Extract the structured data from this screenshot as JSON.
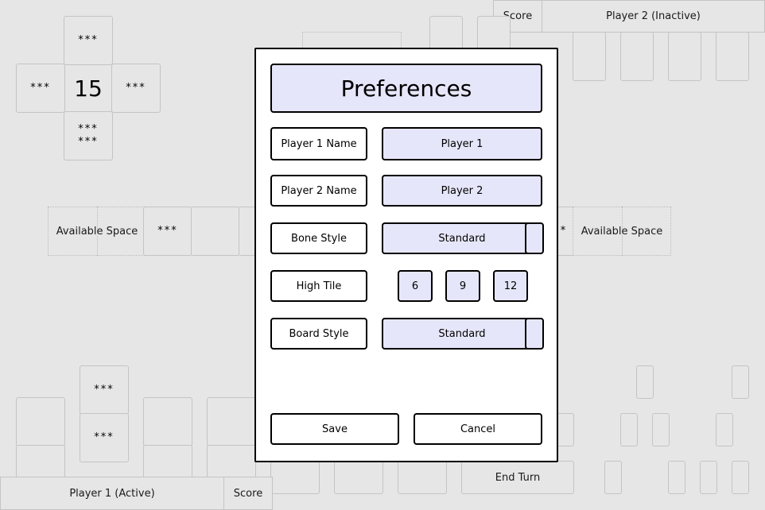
{
  "window": {
    "width": 962,
    "height": 642
  },
  "board": {
    "score_display": "15",
    "pips_single": "***",
    "pips_double": "***\n***",
    "available_space_label": "Available Space",
    "partial_pips": "*"
  },
  "top_bar": {
    "score_label": "Score",
    "player2_label": "Player 2 (Inactive)"
  },
  "bottom_bar": {
    "player1_label": "Player 1 (Active)",
    "score_label": "Score",
    "end_turn_label": "End Turn"
  },
  "preferences": {
    "title": "Preferences",
    "player1_name_label": "Player 1 Name",
    "player1_name_value": "Player 1",
    "player2_name_label": "Player 2 Name",
    "player2_name_value": "Player 2",
    "bone_style_label": "Bone Style",
    "bone_style_value": "Standard",
    "high_tile_label": "High Tile",
    "high_tile_options": [
      "6",
      "9",
      "12"
    ],
    "board_style_label": "Board Style",
    "board_style_value": "Standard",
    "save_label": "Save",
    "cancel_label": "Cancel"
  },
  "colors": {
    "background": "#e6e6e6",
    "accent": "#e6e6fa",
    "border": "#000000"
  }
}
